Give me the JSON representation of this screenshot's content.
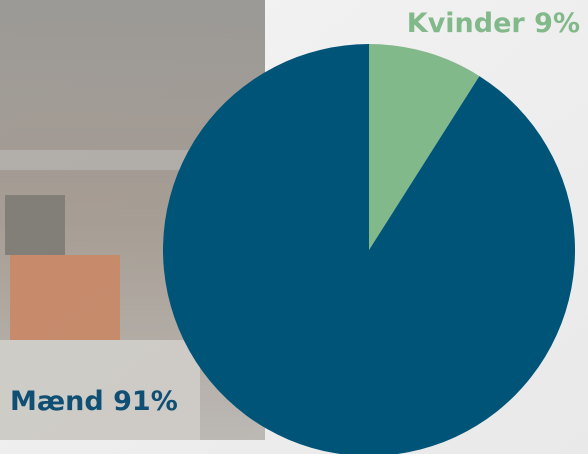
{
  "chart_data": {
    "type": "pie",
    "categories": [
      "Kvinder",
      "Mænd"
    ],
    "values": [
      9,
      91
    ],
    "value_labels": [
      "9%",
      "91%"
    ],
    "colors": [
      "#82b98a",
      "#005478"
    ],
    "label_colors": [
      "#82b98a",
      "#0f4f73"
    ]
  }
}
